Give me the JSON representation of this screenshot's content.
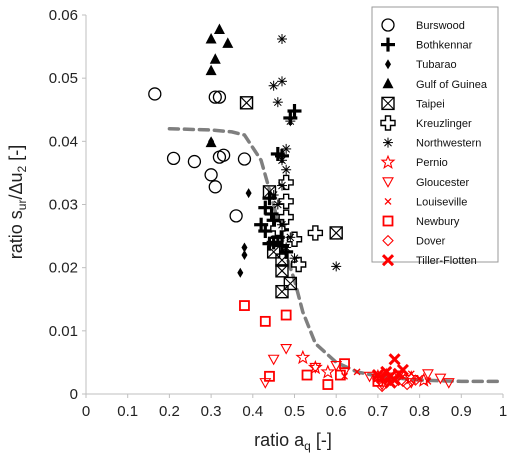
{
  "chart_data": {
    "type": "scatter",
    "title": "",
    "xlabel_main": "ratio a",
    "xlabel_sub": "q",
    "xlabel_unit": " [-]",
    "ylabel_main": "ratio s",
    "ylabel_sub1": "ur",
    "ylabel_mid": "/Δu",
    "ylabel_sub2": "2",
    "ylabel_unit": " [-]",
    "xlim": [
      0,
      1
    ],
    "ylim": [
      0,
      0.06
    ],
    "x_ticks": [
      "0",
      "0.1",
      "0.2",
      "0.3",
      "0.4",
      "0.5",
      "0.6",
      "0.7",
      "0.8",
      "0.9",
      "1"
    ],
    "y_ticks": [
      "0",
      "0.01",
      "0.02",
      "0.03",
      "0.04",
      "0.05",
      "0.06"
    ],
    "grid": false,
    "legend_position": "right",
    "trend_curve": {
      "style": "dashed",
      "color": "#7f7f7f",
      "points": [
        [
          0.2,
          0.042
        ],
        [
          0.3,
          0.0418
        ],
        [
          0.35,
          0.0415
        ],
        [
          0.38,
          0.041
        ],
        [
          0.42,
          0.037
        ],
        [
          0.45,
          0.03
        ],
        [
          0.48,
          0.022
        ],
        [
          0.5,
          0.018
        ],
        [
          0.52,
          0.013
        ],
        [
          0.55,
          0.008
        ],
        [
          0.6,
          0.005
        ],
        [
          0.65,
          0.0035
        ],
        [
          0.7,
          0.0028
        ],
        [
          0.8,
          0.0022
        ],
        [
          0.9,
          0.002
        ],
        [
          1.0,
          0.002
        ]
      ]
    },
    "series": [
      {
        "name": "Burswood",
        "marker": "circle-open",
        "color": "#000000",
        "points": [
          [
            0.165,
            0.0475
          ],
          [
            0.21,
            0.0373
          ],
          [
            0.26,
            0.0368
          ],
          [
            0.3,
            0.0347
          ],
          [
            0.31,
            0.047
          ],
          [
            0.32,
            0.047
          ],
          [
            0.32,
            0.0375
          ],
          [
            0.33,
            0.0378
          ],
          [
            0.31,
            0.0328
          ],
          [
            0.38,
            0.0372
          ],
          [
            0.36,
            0.0282
          ]
        ]
      },
      {
        "name": "Bothkennar",
        "marker": "plus-bold",
        "color": "#000000",
        "points": [
          [
            0.5,
            0.0448
          ],
          [
            0.49,
            0.0437
          ],
          [
            0.46,
            0.038
          ],
          [
            0.47,
            0.0377
          ],
          [
            0.44,
            0.031
          ],
          [
            0.43,
            0.0295
          ],
          [
            0.445,
            0.0285
          ],
          [
            0.45,
            0.0275
          ],
          [
            0.42,
            0.0268
          ],
          [
            0.43,
            0.0258
          ],
          [
            0.47,
            0.026
          ],
          [
            0.46,
            0.0248
          ],
          [
            0.45,
            0.024
          ],
          [
            0.44,
            0.0238
          ],
          [
            0.47,
            0.0235
          ],
          [
            0.48,
            0.0225
          ]
        ]
      },
      {
        "name": "Tubarao",
        "marker": "diamond-filled",
        "color": "#000000",
        "points": [
          [
            0.3,
            0.04
          ],
          [
            0.39,
            0.0318
          ],
          [
            0.38,
            0.0232
          ],
          [
            0.38,
            0.022
          ],
          [
            0.37,
            0.0192
          ]
        ]
      },
      {
        "name": "Gulf of Guinea",
        "marker": "triangle-filled",
        "color": "#000000",
        "points": [
          [
            0.3,
            0.0562
          ],
          [
            0.32,
            0.0577
          ],
          [
            0.34,
            0.0555
          ],
          [
            0.31,
            0.053
          ],
          [
            0.3,
            0.0512
          ],
          [
            0.3,
            0.0398
          ]
        ]
      },
      {
        "name": "Taipei",
        "marker": "box-x",
        "color": "#000000",
        "points": [
          [
            0.385,
            0.0461
          ],
          [
            0.44,
            0.032
          ],
          [
            0.45,
            0.0225
          ],
          [
            0.47,
            0.0212
          ],
          [
            0.47,
            0.0195
          ],
          [
            0.49,
            0.0175
          ],
          [
            0.47,
            0.0162
          ],
          [
            0.6,
            0.0255
          ]
        ]
      },
      {
        "name": "Kreuzlinger",
        "marker": "plus-open",
        "color": "#000000",
        "points": [
          [
            0.48,
            0.0335
          ],
          [
            0.48,
            0.0305
          ],
          [
            0.5,
            0.0245
          ],
          [
            0.51,
            0.0205
          ],
          [
            0.55,
            0.0255
          ],
          [
            0.48,
            0.028
          ],
          [
            0.46,
            0.0262
          ]
        ]
      },
      {
        "name": "Northwestern",
        "marker": "asterisk",
        "color": "#000000",
        "points": [
          [
            0.47,
            0.0562
          ],
          [
            0.47,
            0.0495
          ],
          [
            0.45,
            0.0488
          ],
          [
            0.46,
            0.0462
          ],
          [
            0.49,
            0.0432
          ],
          [
            0.48,
            0.0388
          ],
          [
            0.47,
            0.037
          ],
          [
            0.48,
            0.0355
          ],
          [
            0.47,
            0.033
          ],
          [
            0.45,
            0.0315
          ],
          [
            0.46,
            0.03
          ],
          [
            0.47,
            0.0268
          ],
          [
            0.49,
            0.0248
          ],
          [
            0.48,
            0.0232
          ],
          [
            0.5,
            0.0215
          ],
          [
            0.6,
            0.0202
          ]
        ]
      },
      {
        "name": "Pernio",
        "marker": "star-open",
        "color": "#ff0000",
        "points": [
          [
            0.52,
            0.0058
          ],
          [
            0.55,
            0.0042
          ],
          [
            0.58,
            0.0035
          ],
          [
            0.7,
            0.0028
          ],
          [
            0.72,
            0.003
          ],
          [
            0.78,
            0.0026
          ],
          [
            0.81,
            0.0022
          ]
        ]
      },
      {
        "name": "Gloucester",
        "marker": "triangle-down-open",
        "color": "#ff0000",
        "points": [
          [
            0.48,
            0.0072
          ],
          [
            0.45,
            0.0055
          ],
          [
            0.43,
            0.0018
          ],
          [
            0.55,
            0.0042
          ],
          [
            0.6,
            0.0045
          ],
          [
            0.62,
            0.0035
          ],
          [
            0.68,
            0.0028
          ],
          [
            0.71,
            0.0015
          ],
          [
            0.75,
            0.003
          ],
          [
            0.78,
            0.0018
          ],
          [
            0.82,
            0.0032
          ],
          [
            0.85,
            0.0025
          ],
          [
            0.87,
            0.0018
          ]
        ]
      },
      {
        "name": "Louiseville",
        "marker": "x-small",
        "color": "#ff0000",
        "points": [
          [
            0.62,
            0.0028
          ],
          [
            0.65,
            0.0035
          ],
          [
            0.7,
            0.0025
          ],
          [
            0.72,
            0.003
          ],
          [
            0.74,
            0.0022
          ],
          [
            0.76,
            0.0028
          ],
          [
            0.78,
            0.0032
          ],
          [
            0.8,
            0.0025
          ],
          [
            0.82,
            0.002
          ]
        ]
      },
      {
        "name": "Newbury",
        "marker": "square-open",
        "color": "#ff0000",
        "points": [
          [
            0.38,
            0.014
          ],
          [
            0.43,
            0.0115
          ],
          [
            0.48,
            0.0125
          ],
          [
            0.44,
            0.0028
          ],
          [
            0.53,
            0.003
          ],
          [
            0.58,
            0.0015
          ],
          [
            0.61,
            0.003
          ],
          [
            0.62,
            0.0048
          ],
          [
            0.7,
            0.002
          ]
        ]
      },
      {
        "name": "Dover",
        "marker": "diamond-open",
        "color": "#ff0000",
        "points": [
          [
            0.7,
            0.0025
          ],
          [
            0.72,
            0.0022
          ],
          [
            0.74,
            0.0018
          ],
          [
            0.76,
            0.002
          ],
          [
            0.77,
            0.0015
          ],
          [
            0.79,
            0.0022
          ],
          [
            0.71,
            0.0012
          ]
        ]
      },
      {
        "name": "Tiller-Flotten",
        "marker": "x-bold",
        "color": "#ff0000",
        "points": [
          [
            0.7,
            0.003
          ],
          [
            0.71,
            0.0025
          ],
          [
            0.72,
            0.0035
          ],
          [
            0.73,
            0.0028
          ],
          [
            0.74,
            0.0055
          ],
          [
            0.75,
            0.0032
          ],
          [
            0.76,
            0.0038
          ],
          [
            0.73,
            0.0018
          ],
          [
            0.74,
            0.0022
          ]
        ]
      }
    ]
  }
}
